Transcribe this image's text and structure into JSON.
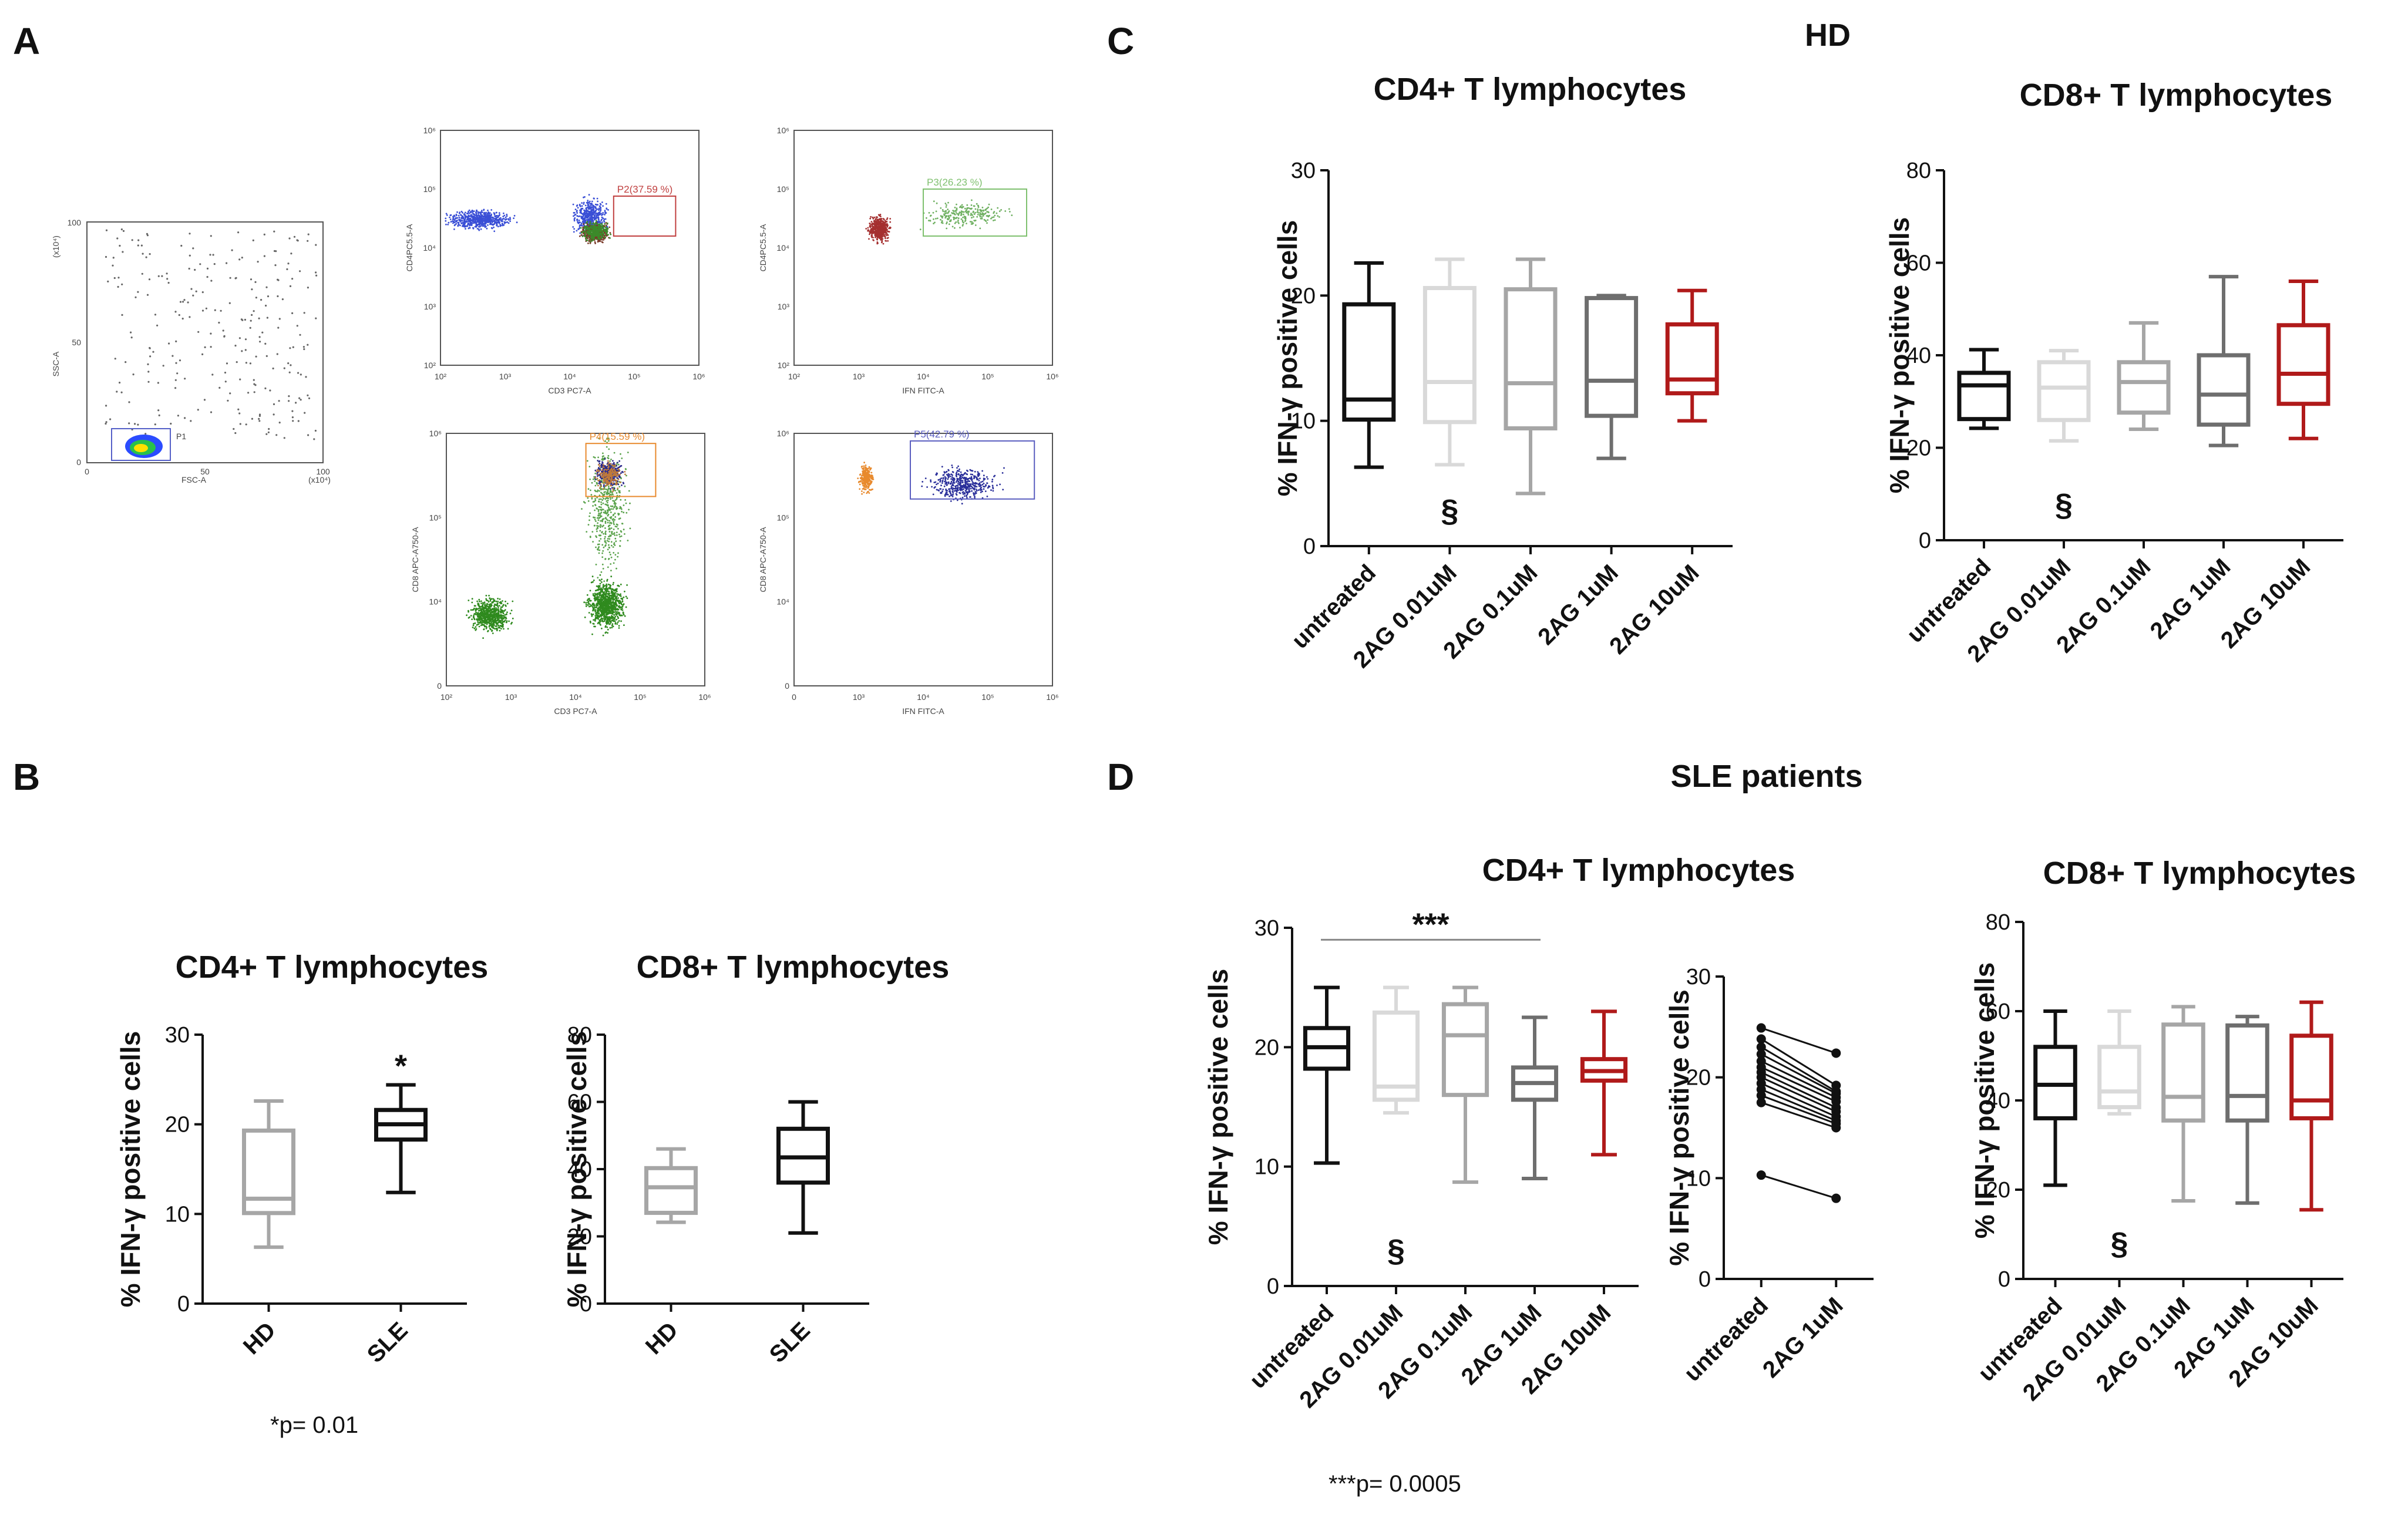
{
  "panels": {
    "A": "A",
    "B": "B",
    "C": "C",
    "D": "D"
  },
  "colors": {
    "black": "#111111",
    "light": "#d9d9d9",
    "mid": "#a6a6a6",
    "dark": "#6e6e6e",
    "red": "#b01a1a"
  },
  "flow": {
    "scatter1": {
      "xlabel": "FSC-A",
      "ylabel": "SSC-A",
      "xmult": "(x10⁴)",
      "ymult": "(x10⁴)",
      "xticks": [
        "0",
        "50",
        "100"
      ],
      "yticks": [
        "0",
        "50",
        "100"
      ],
      "gate": "P1"
    },
    "plots": [
      {
        "xlabel": "CD3 PC7-A",
        "ylabel": "CD4PC5.5-A",
        "gate": "P2(37.59 %)",
        "xticks": [
          "10²",
          "10³",
          "10⁴",
          "10⁵",
          "10⁶"
        ],
        "yticks": [
          "10²",
          "10³",
          "10⁴",
          "10⁵",
          "10⁶"
        ]
      },
      {
        "xlabel": "IFN FITC-A",
        "ylabel": "CD4PC5.5-A",
        "gate": "P3(26.23 %)",
        "xticks": [
          "10²",
          "10³",
          "10⁴",
          "10⁵",
          "10⁶"
        ],
        "yticks": [
          "10²",
          "10³",
          "10⁴",
          "10⁵",
          "10⁶"
        ]
      },
      {
        "xlabel": "CD3 PC7-A",
        "ylabel": "CD8 APC-A750-A",
        "gate": "P4(15.59 %)",
        "xticks": [
          "10²",
          "10³",
          "10⁴",
          "10⁵",
          "10⁶"
        ],
        "yticks": [
          "0",
          "10⁴",
          "10⁵",
          "10⁶"
        ]
      },
      {
        "xlabel": "IFN FITC-A",
        "ylabel": "CD8 APC-A750-A",
        "gate": "P5(42.79 %)",
        "xticks": [
          "0",
          "10³",
          "10⁴",
          "10⁵",
          "10⁶"
        ],
        "yticks": [
          "0",
          "10⁴",
          "10⁵",
          "10⁶"
        ]
      }
    ]
  },
  "headers": {
    "hd": "HD",
    "sle": "SLE patients"
  },
  "notes": {
    "b": "*p= 0.01",
    "d": "***p= 0.0005"
  },
  "chart_data": [
    {
      "id": "B1",
      "type": "box",
      "title": "CD4+ T lymphocytes",
      "ylabel": "% IFN-γ positive cells",
      "ylim": [
        0,
        30
      ],
      "yticks": [
        0,
        10,
        20,
        30
      ],
      "categories": [
        "HD",
        "SLE"
      ],
      "boxes": [
        {
          "min": 6.3,
          "q1": 10.1,
          "median": 11.7,
          "q3": 19.3,
          "max": 22.6,
          "color": "#a6a6a6"
        },
        {
          "min": 12.4,
          "q1": 18.3,
          "median": 20.0,
          "q3": 21.6,
          "max": 24.4,
          "color": "#111111"
        }
      ],
      "annotations": [
        {
          "text": "*",
          "category": 1
        }
      ]
    },
    {
      "id": "B2",
      "type": "box",
      "title": "CD8+ T lymphocytes",
      "ylabel": "% IFN-γ positive cells",
      "ylim": [
        0,
        80
      ],
      "yticks": [
        0,
        20,
        40,
        60,
        80
      ],
      "categories": [
        "HD",
        "SLE"
      ],
      "boxes": [
        {
          "min": 24.2,
          "q1": 27.0,
          "median": 34.6,
          "q3": 40.3,
          "max": 46.0,
          "color": "#a6a6a6"
        },
        {
          "min": 21.0,
          "q1": 36.0,
          "median": 43.5,
          "q3": 52.0,
          "max": 60.0,
          "color": "#111111"
        }
      ]
    },
    {
      "id": "C1",
      "type": "box",
      "title": "CD4+ T lymphocytes",
      "ylabel": "% IFN-γ positive cells",
      "ylim": [
        0,
        30
      ],
      "yticks": [
        0,
        10,
        20,
        30
      ],
      "categories": [
        "untreated",
        "2AG 0.01uM",
        "2AG 0.1uM",
        "2AG 1uM",
        "2AG 10uM"
      ],
      "boxes": [
        {
          "min": 6.3,
          "q1": 10.1,
          "median": 11.7,
          "q3": 19.3,
          "max": 22.6,
          "color": "#111111"
        },
        {
          "min": 6.5,
          "q1": 9.9,
          "median": 13.1,
          "q3": 20.6,
          "max": 22.9,
          "color": "#d9d9d9"
        },
        {
          "min": 4.2,
          "q1": 9.4,
          "median": 13.0,
          "q3": 20.5,
          "max": 22.9,
          "color": "#a6a6a6"
        },
        {
          "min": 7.0,
          "q1": 10.4,
          "median": 13.2,
          "q3": 19.8,
          "max": 20.0,
          "color": "#6e6e6e"
        },
        {
          "min": 10.0,
          "q1": 12.2,
          "median": 13.3,
          "q3": 17.7,
          "max": 20.4,
          "color": "#b01a1a"
        }
      ],
      "annotations": [
        {
          "text": "§",
          "category": 1
        }
      ]
    },
    {
      "id": "C2",
      "type": "box",
      "title": "CD8+ T lymphocytes",
      "ylabel": "% IFN-γ positive cells",
      "ylim": [
        0,
        80
      ],
      "yticks": [
        0,
        20,
        40,
        60,
        80
      ],
      "categories": [
        "untreated",
        "2AG 0.01uM",
        "2AG 0.1uM",
        "2AG 1uM",
        "2AG 10uM"
      ],
      "boxes": [
        {
          "min": 24.2,
          "q1": 26.2,
          "median": 33.5,
          "q3": 36.2,
          "max": 41.2,
          "color": "#111111"
        },
        {
          "min": 21.5,
          "q1": 26.0,
          "median": 33.0,
          "q3": 38.5,
          "max": 41.0,
          "color": "#d9d9d9"
        },
        {
          "min": 24.0,
          "q1": 27.6,
          "median": 34.2,
          "q3": 38.5,
          "max": 47.0,
          "color": "#a6a6a6"
        },
        {
          "min": 20.5,
          "q1": 25.0,
          "median": 31.5,
          "q3": 40.0,
          "max": 57.0,
          "color": "#6e6e6e"
        },
        {
          "min": 22.0,
          "q1": 29.5,
          "median": 36.0,
          "q3": 46.5,
          "max": 56.0,
          "color": "#b01a1a"
        }
      ],
      "annotations": [
        {
          "text": "§",
          "category": 1
        }
      ]
    },
    {
      "id": "D1",
      "type": "box",
      "title": "CD4+ T lymphocytes",
      "ylabel": "% IFN-γ positive cells",
      "ylim": [
        0,
        30
      ],
      "yticks": [
        0,
        10,
        20,
        30
      ],
      "categories": [
        "untreated",
        "2AG 0.01uM",
        "2AG 0.1uM",
        "2AG 1uM",
        "2AG 10uM"
      ],
      "boxes": [
        {
          "min": 10.3,
          "q1": 18.2,
          "median": 20.0,
          "q3": 21.6,
          "max": 25.0,
          "color": "#111111"
        },
        {
          "min": 14.5,
          "q1": 15.6,
          "median": 16.7,
          "q3": 22.9,
          "max": 25.0,
          "color": "#d9d9d9"
        },
        {
          "min": 8.7,
          "q1": 16.0,
          "median": 21.0,
          "q3": 23.6,
          "max": 25.0,
          "color": "#a6a6a6"
        },
        {
          "min": 9.0,
          "q1": 15.6,
          "median": 17.0,
          "q3": 18.3,
          "max": 22.5,
          "color": "#6e6e6e"
        },
        {
          "min": 11.0,
          "q1": 17.2,
          "median": 18.0,
          "q3": 19.0,
          "max": 23.0,
          "color": "#b01a1a"
        }
      ],
      "bracket": {
        "from": 0,
        "to": 3,
        "text": "***"
      },
      "annotations": [
        {
          "text": "§",
          "category": 1
        }
      ]
    },
    {
      "id": "D2",
      "type": "paired",
      "ylabel": "% IFN-γ positive cells",
      "ylim": [
        0,
        30
      ],
      "yticks": [
        0,
        10,
        20,
        30
      ],
      "categories": [
        "untreated",
        "2AG 1uM"
      ],
      "pairs": [
        [
          24.9,
          22.4
        ],
        [
          23.8,
          19.2
        ],
        [
          23.0,
          18.6
        ],
        [
          22.3,
          18.4
        ],
        [
          21.6,
          18.0
        ],
        [
          21.0,
          17.6
        ],
        [
          20.5,
          17.0
        ],
        [
          20.0,
          16.6
        ],
        [
          19.4,
          16.1
        ],
        [
          18.8,
          15.7
        ],
        [
          18.2,
          15.4
        ],
        [
          17.5,
          15.0
        ],
        [
          10.3,
          8.0
        ]
      ]
    },
    {
      "id": "D3",
      "type": "box",
      "title": "CD8+ T lymphocytes",
      "ylabel": "% IFN-γ positive cells",
      "ylim": [
        0,
        80
      ],
      "yticks": [
        0,
        20,
        40,
        60,
        80
      ],
      "categories": [
        "untreated",
        "2AG 0.01uM",
        "2AG 0.1uM",
        "2AG 1uM",
        "2AG 10uM"
      ],
      "boxes": [
        {
          "min": 21.0,
          "q1": 36.0,
          "median": 43.5,
          "q3": 52.0,
          "max": 60.0,
          "color": "#111111"
        },
        {
          "min": 37.0,
          "q1": 38.5,
          "median": 42.0,
          "q3": 52.0,
          "max": 60.0,
          "color": "#d9d9d9"
        },
        {
          "min": 17.5,
          "q1": 35.5,
          "median": 40.8,
          "q3": 57.0,
          "max": 61.0,
          "color": "#a6a6a6"
        },
        {
          "min": 17.0,
          "q1": 35.5,
          "median": 41.0,
          "q3": 56.8,
          "max": 58.8,
          "color": "#6e6e6e"
        },
        {
          "min": 15.5,
          "q1": 36.0,
          "median": 40.0,
          "q3": 54.5,
          "max": 62.0,
          "color": "#b01a1a"
        }
      ],
      "annotations": [
        {
          "text": "§",
          "category": 1
        }
      ]
    }
  ]
}
